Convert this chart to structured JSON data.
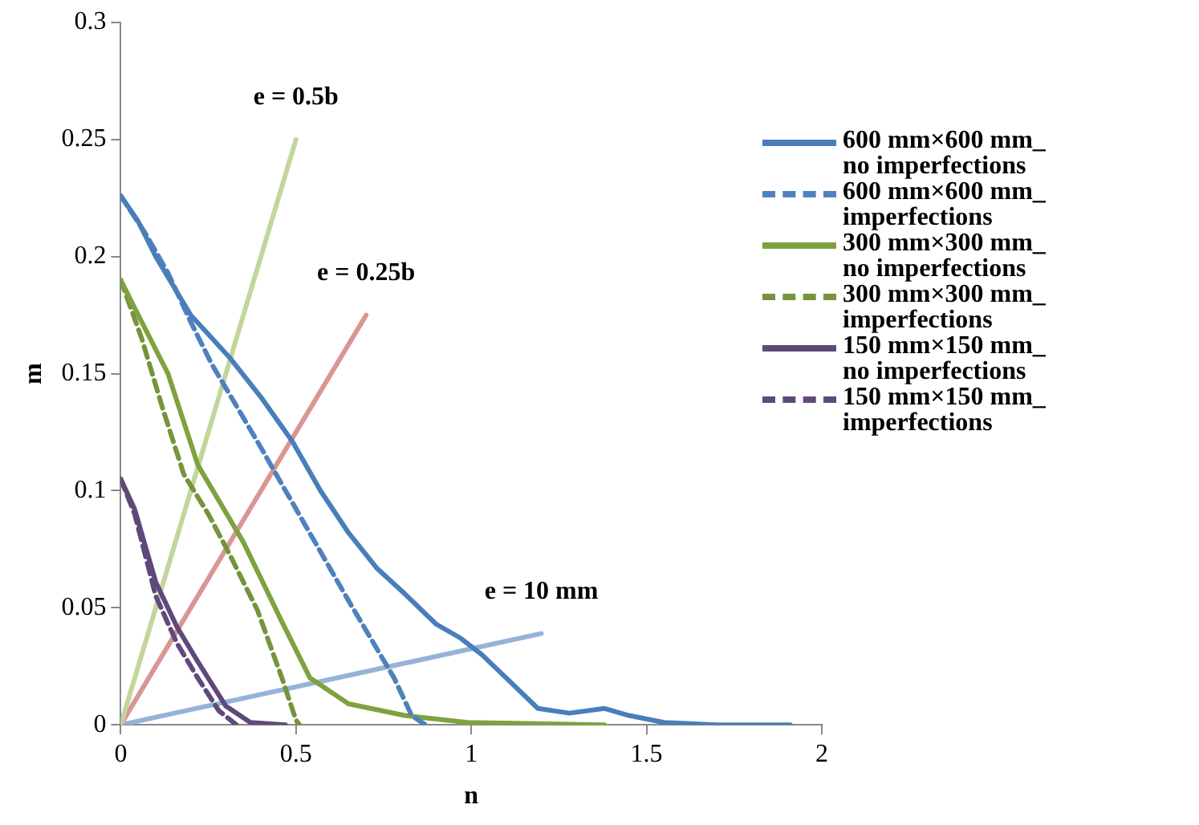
{
  "chart_data": {
    "type": "line",
    "xlabel": "n",
    "ylabel": "m",
    "xlim": [
      0,
      2
    ],
    "xticks": [
      0,
      0.5,
      1,
      1.5,
      2
    ],
    "ylim": [
      0,
      0.3
    ],
    "yticks": [
      0,
      0.05,
      0.1,
      0.15,
      0.2,
      0.25,
      0.3
    ],
    "grid": false,
    "legend": "right",
    "marker": "none",
    "series": [
      {
        "name": "600 mm×600 mm_no imperfections",
        "color": "#4a7ebb",
        "line_style": "solid",
        "x": [
          0,
          0.05,
          0.1,
          0.2,
          0.31,
          0.4,
          0.49,
          0.57,
          0.65,
          0.73,
          0.81,
          0.9,
          0.97,
          1.03,
          1.1,
          1.19,
          1.28,
          1.38,
          1.45,
          1.55,
          1.7,
          1.91
        ],
        "values": [
          0.226,
          0.215,
          0.2,
          0.175,
          0.157,
          0.14,
          0.121,
          0.1,
          0.082,
          0.067,
          0.056,
          0.043,
          0.037,
          0.03,
          0.02,
          0.007,
          0.005,
          0.007,
          0.004,
          0.001,
          0,
          0
        ]
      },
      {
        "name": "600 mm×600 mm_imperfections",
        "color": "#4f81bd",
        "line_style": "dashed",
        "x": [
          0,
          0.07,
          0.135,
          0.2,
          0.26,
          0.39,
          0.52,
          0.65,
          0.78,
          0.83,
          0.87
        ],
        "values": [
          0.226,
          0.21,
          0.193,
          0.172,
          0.154,
          0.121,
          0.087,
          0.053,
          0.02,
          0.004,
          0
        ]
      },
      {
        "name": "300 mm×300 mm_no imperfections",
        "color": "#7fa23f",
        "line_style": "solid",
        "x": [
          0,
          0.05,
          0.135,
          0.22,
          0.35,
          0.46,
          0.54,
          0.65,
          0.81,
          0.99,
          1.38
        ],
        "values": [
          0.19,
          0.175,
          0.15,
          0.111,
          0.078,
          0.044,
          0.02,
          0.009,
          0.004,
          0.001,
          0
        ]
      },
      {
        "name": "300 mm×300 mm_imperfections",
        "color": "#77933c",
        "line_style": "dashed",
        "x": [
          0,
          0.06,
          0.12,
          0.18,
          0.25,
          0.31,
          0.39,
          0.46,
          0.5,
          0.51
        ],
        "values": [
          0.19,
          0.165,
          0.135,
          0.107,
          0.09,
          0.073,
          0.049,
          0.02,
          0.002,
          0
        ]
      },
      {
        "name": "150 mm×150 mm_no imperfections",
        "color": "#5f497a",
        "line_style": "solid",
        "x": [
          0,
          0.04,
          0.1,
          0.16,
          0.22,
          0.3,
          0.37,
          0.47
        ],
        "values": [
          0.105,
          0.092,
          0.061,
          0.042,
          0.027,
          0.008,
          0.001,
          0
        ]
      },
      {
        "name": "150 mm×150 mm_imperfections",
        "color": "#604a7b",
        "line_style": "dashed",
        "x": [
          0,
          0.04,
          0.1,
          0.16,
          0.22,
          0.28,
          0.33
        ],
        "values": [
          0.105,
          0.09,
          0.055,
          0.035,
          0.02,
          0.006,
          0
        ]
      },
      {
        "color": "#c3d69b",
        "line_style": "solid",
        "x": [
          0,
          0.5
        ],
        "values": [
          0,
          0.25
        ]
      },
      {
        "color": "#d99694",
        "line_style": "solid",
        "x": [
          0,
          0.7
        ],
        "values": [
          0,
          0.175
        ]
      },
      {
        "color": "#95b3d7",
        "line_style": "solid",
        "x": [
          0,
          1.2
        ],
        "values": [
          0,
          0.039
        ]
      }
    ],
    "annotations": [
      "e = 0.5b",
      "e = 0.25b",
      "e = 10 mm"
    ]
  }
}
